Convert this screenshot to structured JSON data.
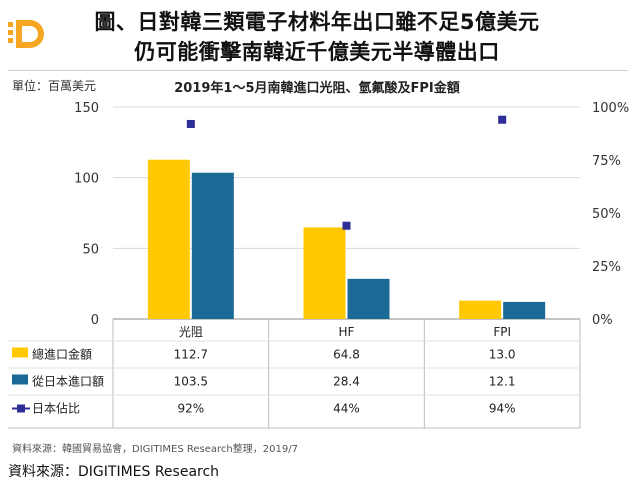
{
  "header": {
    "title_line1": "圖、日對韓三類電子材料年出口雖不足5億美元",
    "title_line2": "仍可能衝擊南韓近千億美元半導體出口"
  },
  "unit_label": "單位：百萬美元",
  "source_note": "資料來源：韓國貿易協會，DIGITIMES Research整理，2019/7",
  "footer_source": "資料來源：DIGITIMES Research",
  "colors": {
    "gold": "#FFC800",
    "blue": "#1B6A95",
    "marker": "#2E2E9A",
    "brand": "#F5A623"
  },
  "chart_data": {
    "type": "bar",
    "title": "2019年1～5月南韓進口光阻、氫氟酸及FPI金額",
    "categories": [
      "光阻",
      "HF",
      "FPI"
    ],
    "series": [
      {
        "name": "總進口金額",
        "values": [
          112.7,
          64.8,
          13.0
        ],
        "labels": [
          "112.7",
          "64.8",
          "13.0"
        ],
        "color": "#FFC800",
        "axis": "left"
      },
      {
        "name": "從日本進口額",
        "values": [
          103.5,
          28.4,
          12.1
        ],
        "labels": [
          "103.5",
          "28.4",
          "12.1"
        ],
        "color": "#1B6A95",
        "axis": "left"
      },
      {
        "name": "日本佔比",
        "values": [
          92,
          44,
          94
        ],
        "labels": [
          "92%",
          "44%",
          "94%"
        ],
        "color": "#2E2E9A",
        "axis": "right",
        "kind": "marker"
      }
    ],
    "ylim": [
      0,
      150
    ],
    "y_ticks": [
      "0",
      "50",
      "100",
      "150"
    ],
    "y2lim": [
      0,
      100
    ],
    "y2_ticks": [
      "0%",
      "25%",
      "50%",
      "75%",
      "100%"
    ],
    "grid": true,
    "legend_placement": "data-table"
  }
}
